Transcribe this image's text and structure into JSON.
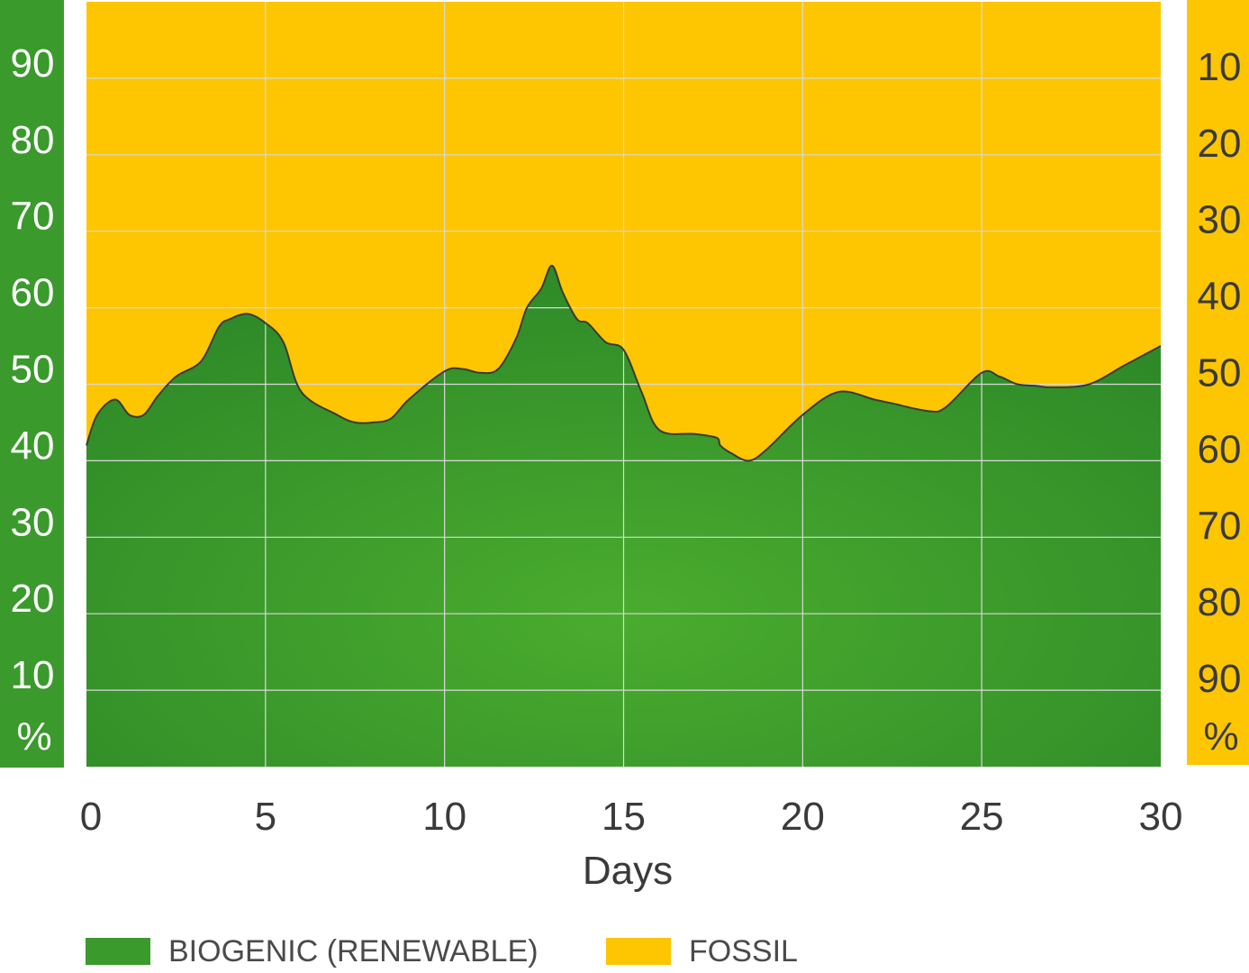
{
  "colors": {
    "biogenic": "#3a9a2c",
    "biogenic_light": "#4aac2e",
    "biogenic_dark": "#2e8a28",
    "fossil": "#fdc600",
    "grid": "#d9d9d9",
    "outline": "#3a3a3a"
  },
  "chart_data": {
    "type": "area",
    "xlabel": "Days",
    "x_ticks": [
      "0",
      "5",
      "10",
      "15",
      "20",
      "25",
      "30"
    ],
    "xlim": [
      0,
      30
    ],
    "ylim": [
      0,
      100
    ],
    "left_axis": {
      "ticks": [
        "90",
        "80",
        "70",
        "60",
        "50",
        "40",
        "30",
        "20",
        "10"
      ],
      "unit": "%"
    },
    "right_axis": {
      "ticks": [
        "10",
        "20",
        "30",
        "40",
        "50",
        "60",
        "70",
        "80",
        "90"
      ],
      "unit": "%"
    },
    "grid": true,
    "legend_position": "bottom",
    "stacked": true,
    "x": [
      0,
      0.3,
      0.8,
      1.2,
      1.6,
      2.0,
      2.5,
      3.2,
      3.7,
      4.0,
      4.5,
      5.0,
      5.5,
      6.0,
      7.0,
      7.5,
      8.0,
      8.5,
      9.0,
      10.0,
      10.5,
      11.0,
      11.5,
      12.0,
      12.3,
      12.7,
      13.0,
      13.3,
      13.7,
      14.0,
      14.5,
      15.0,
      15.5,
      16.0,
      17.0,
      17.6,
      17.7,
      18.0,
      18.5,
      19.0,
      20.0,
      21.0,
      22.0,
      22.5,
      23.5,
      24.0,
      25.0,
      25.5,
      26.0,
      26.5,
      27.0,
      28.0,
      29.0,
      30.0
    ],
    "series": [
      {
        "name": "BIOGENIC (RENEWABLE)",
        "values": [
          42,
          46,
          48,
          46,
          46,
          48.5,
          51,
          53,
          57.5,
          58.5,
          59.2,
          58,
          55.5,
          49,
          46,
          45,
          45,
          45.5,
          48,
          51.7,
          52,
          51.5,
          52,
          56,
          60,
          62.5,
          65.5,
          62,
          58.5,
          58,
          55.5,
          54.5,
          49,
          44,
          43.5,
          43,
          42,
          41,
          40,
          41.5,
          46,
          49,
          48,
          47.5,
          46.5,
          47,
          51.5,
          51,
          50,
          49.8,
          49.6,
          50,
          52.5,
          55
        ]
      },
      {
        "name": "FOSSIL",
        "values": [
          58,
          54,
          52,
          54,
          54,
          51.5,
          49,
          47,
          42.5,
          41.5,
          40.8,
          42,
          44.5,
          51,
          54,
          55,
          55,
          54.5,
          52,
          48.3,
          48,
          48.5,
          48,
          44,
          40,
          37.5,
          34.5,
          38,
          41.5,
          42,
          44.5,
          45.5,
          51,
          56,
          56.5,
          57,
          58,
          59,
          60,
          58.5,
          54,
          51,
          52,
          52.5,
          53.5,
          53,
          48.5,
          49,
          50,
          50.2,
          50.4,
          50,
          47.5,
          45
        ]
      }
    ]
  }
}
